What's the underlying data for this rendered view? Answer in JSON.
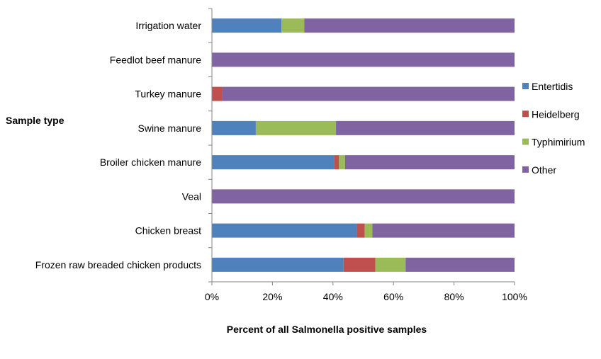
{
  "chart_data": {
    "type": "bar",
    "orientation": "horizontal",
    "stacked": "percent",
    "title": "",
    "xlabel": "Percent of all Salmonella positive samples",
    "ylabel": "Sample type",
    "xlim": [
      0,
      100
    ],
    "x_ticks": [
      "0%",
      "20%",
      "40%",
      "60%",
      "80%",
      "100%"
    ],
    "grid": false,
    "legend_position": "right",
    "categories": [
      "Irrigation water",
      "Feedlot beef manure",
      "Turkey manure",
      "Swine manure",
      "Broiler chicken manure",
      "Veal",
      "Chicken breast",
      "Frozen raw breaded chicken products"
    ],
    "series": [
      {
        "name": "Entertidis",
        "color": "#4F81BD",
        "values": [
          23,
          0,
          0,
          14.5,
          40.5,
          0,
          48,
          43.5
        ]
      },
      {
        "name": "Heidelberg",
        "color": "#C0504D",
        "values": [
          0,
          0,
          3.5,
          0,
          1.5,
          0,
          2.5,
          10.5
        ]
      },
      {
        "name": "Typhimirium",
        "color": "#9BBB59",
        "values": [
          7.5,
          0,
          0,
          26.5,
          2,
          0,
          2.5,
          10
        ]
      },
      {
        "name": "Other",
        "color": "#8064A2",
        "values": [
          69.5,
          100,
          96.5,
          59,
          56,
          100,
          47,
          36
        ]
      }
    ]
  }
}
